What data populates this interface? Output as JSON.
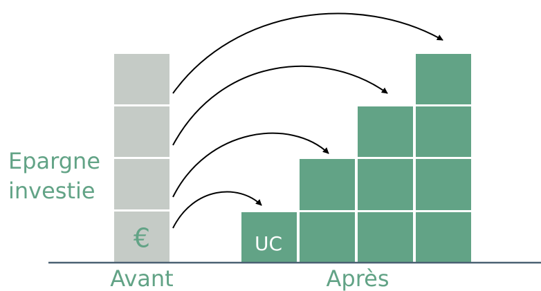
{
  "side_label": [
    "Epargne",
    "investie"
  ],
  "euro_block": "€",
  "uc_block": "UC",
  "before_label": "Avant",
  "after_label": "Après"
}
